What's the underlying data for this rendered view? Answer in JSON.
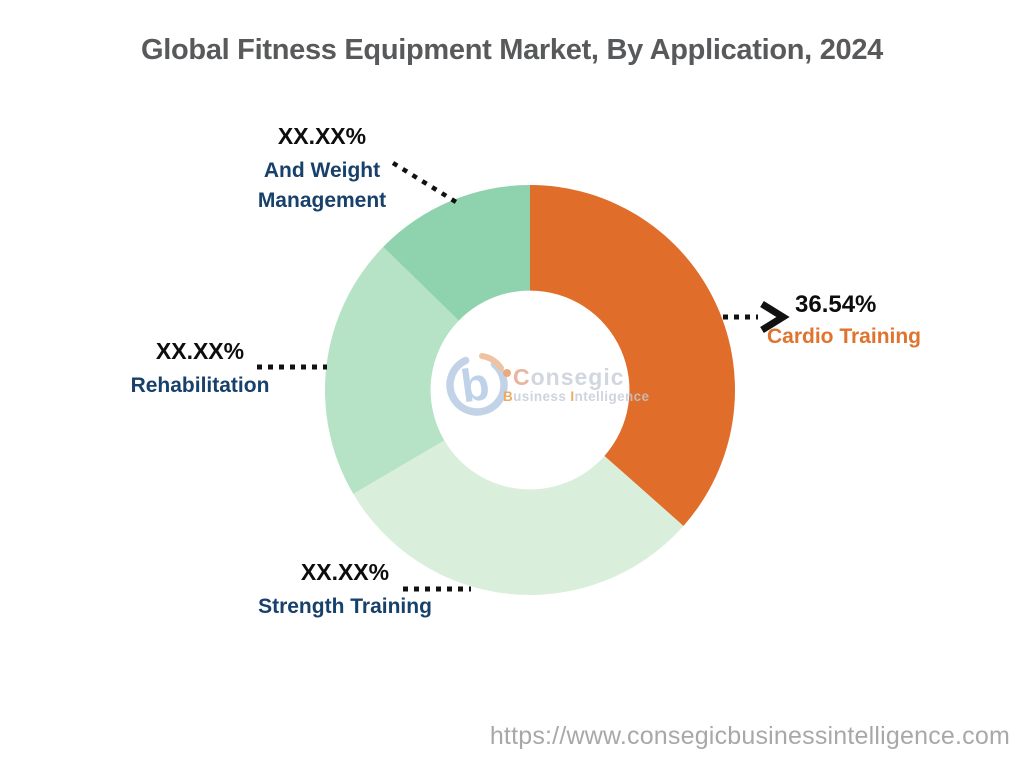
{
  "page": {
    "title": "Global Fitness Equipment Market, By Application, 2024",
    "source_url": "https://www.consegicbusinessintelligence.com",
    "background_color": "#FFFFFF",
    "title_color": "#58595B"
  },
  "watermark": {
    "brand_initial": "C",
    "brand_rest": "onsegic",
    "tagline_initial_1": "B",
    "tagline_part_1": "usiness ",
    "tagline_initial_2": "I",
    "tagline_part_2": "ntelligence"
  },
  "chart_data": {
    "type": "pie",
    "subtype": "donut",
    "title": "Global Fitness Equipment Market, By Application, 2024",
    "start_angle_deg": 0,
    "direction": "clockwise",
    "inner_radius_ratio": 0.485,
    "legend_position": "none",
    "slices": [
      {
        "id": "cardio-training",
        "label": "Cardio Training",
        "display_value": "36.54%",
        "value": 36.54,
        "color": "#E06E2A",
        "label_color": "#E0732E"
      },
      {
        "id": "strength-training",
        "label": "Strength Training",
        "display_value": "XX.XX%",
        "value": 30.0,
        "color": "#D9EFDB",
        "label_color": "#17406B"
      },
      {
        "id": "rehabilitation",
        "label": "Rehabilitation",
        "display_value": "XX.XX%",
        "value": 20.76,
        "color": "#B6E2C6",
        "label_color": "#17406B"
      },
      {
        "id": "and-weight-management",
        "label": "And Weight Management",
        "display_value": "XX.XX%",
        "value": 12.7,
        "color": "#8ED3AD",
        "label_color": "#17406B"
      }
    ],
    "leader_line_color": "#111111",
    "percent_label_color": "#0D0D0D"
  }
}
